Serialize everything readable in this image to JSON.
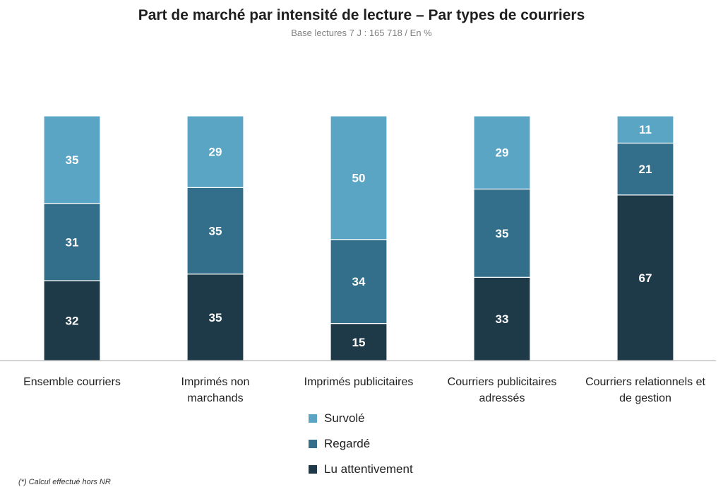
{
  "title": "Part de marché par intensité de lecture – Par types de courriers",
  "subtitle": "Base  lectures 7 J : 165 718 / En %",
  "footnote": "(*) Calcul effectué hors NR",
  "colors": {
    "survole": "#5aa5c4",
    "regarde": "#336f8a",
    "lu_attentivement": "#1e3948",
    "axis": "#a6a6a6"
  },
  "chart_data": {
    "type": "bar",
    "stacked": true,
    "title": "Part de marché par intensité de lecture – Par types de courriers",
    "subtitle": "Base  lectures 7 J : 165 718 / En %",
    "categories": [
      [
        "Ensemble courriers"
      ],
      [
        "Imprimés non",
        "marchands"
      ],
      [
        "Imprimés publicitaires"
      ],
      [
        "Courriers publicitaires",
        "adressés"
      ],
      [
        "Courriers relationnels et",
        "de gestion"
      ]
    ],
    "series": [
      {
        "name": "Lu attentivement",
        "color": "#1e3948",
        "values": [
          32,
          35,
          15,
          33,
          67
        ]
      },
      {
        "name": "Regardé",
        "color": "#336f8a",
        "values": [
          31,
          35,
          34,
          35,
          21
        ]
      },
      {
        "name": "Survolé",
        "color": "#5aa5c4",
        "values": [
          35,
          29,
          50,
          29,
          11
        ]
      }
    ],
    "legend_order": [
      "Survolé",
      "Regardé",
      "Lu attentivement"
    ],
    "legend_position": "bottom",
    "grid": false,
    "ylim": [
      0,
      100
    ]
  }
}
